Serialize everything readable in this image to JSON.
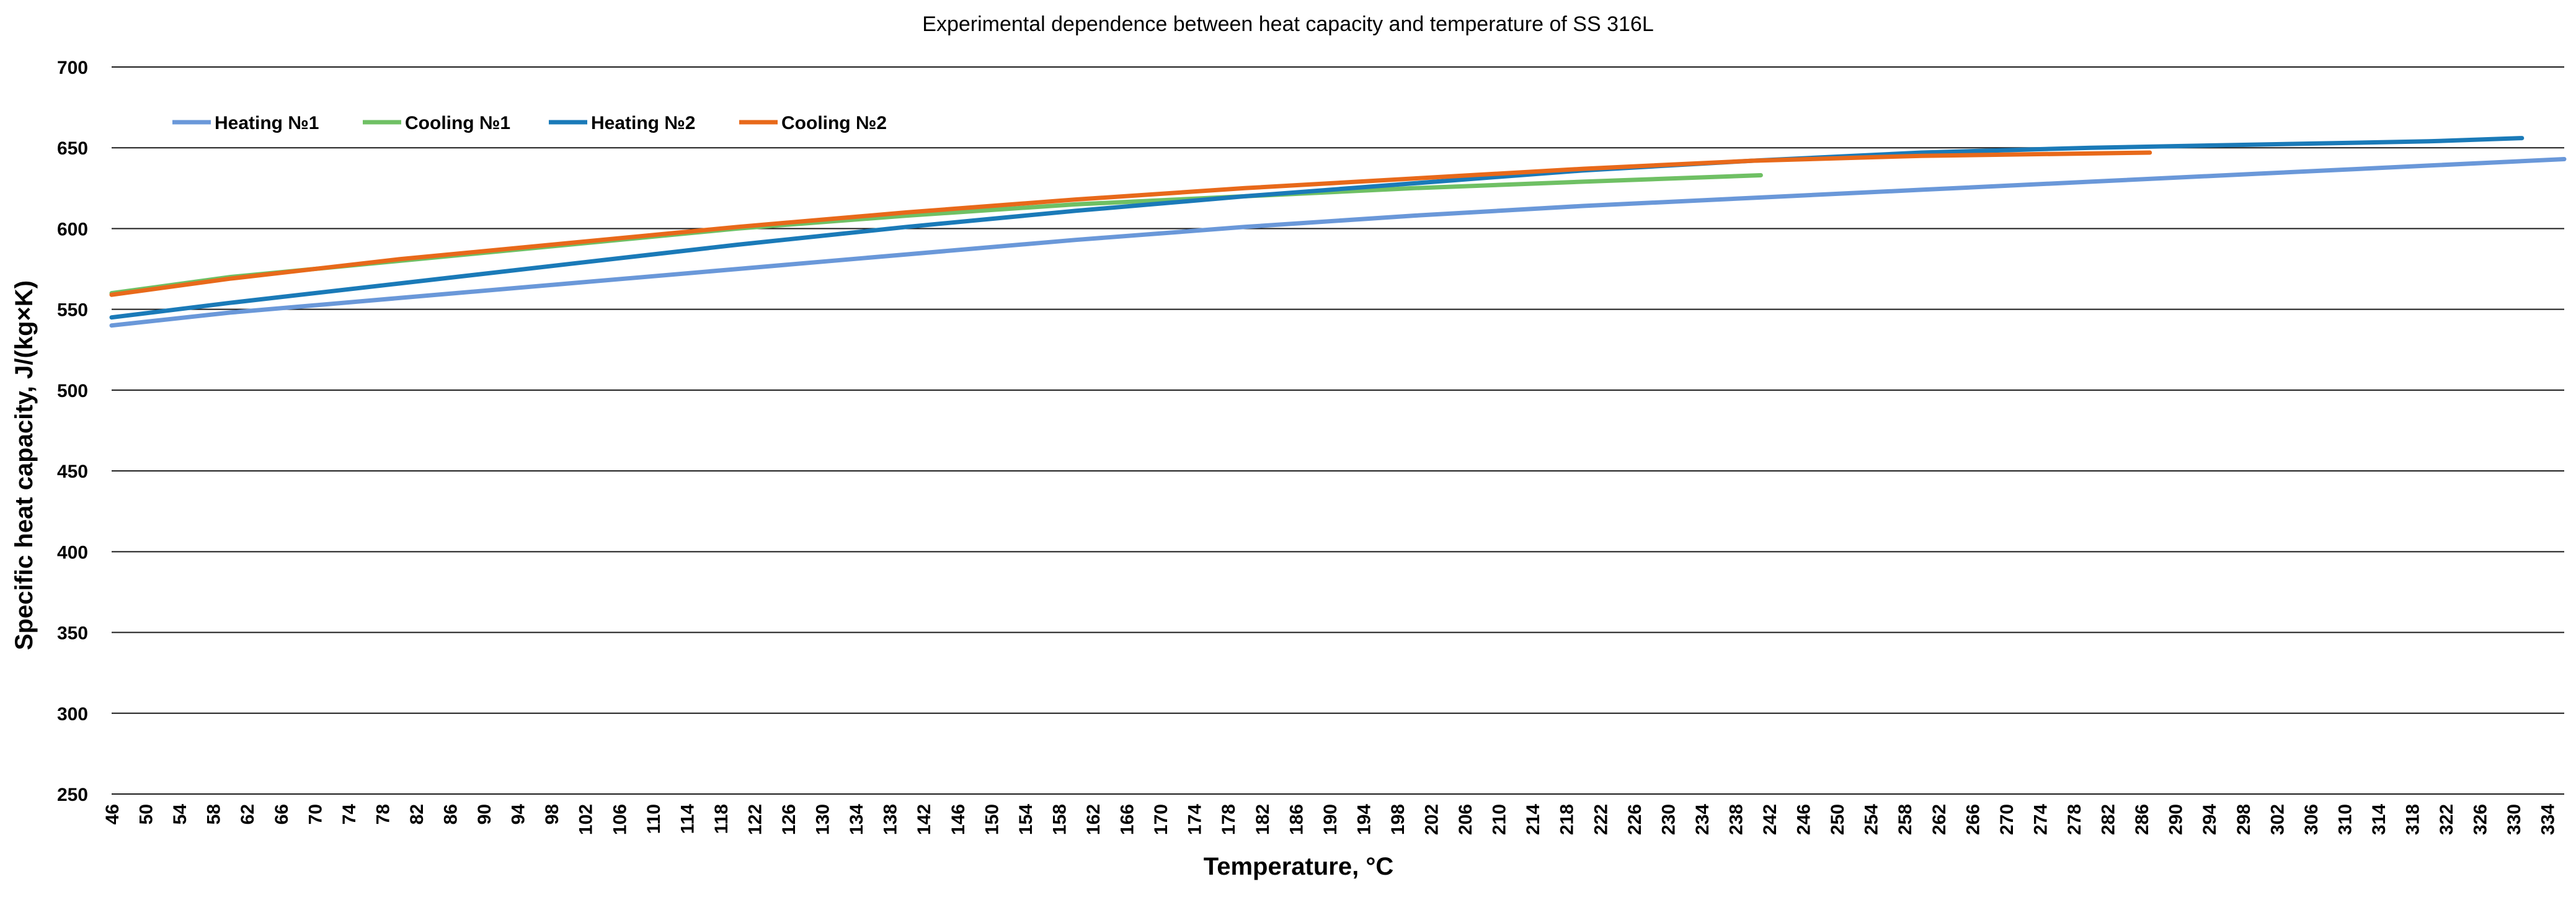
{
  "chart_data": {
    "type": "line",
    "title": "Experimental dependence between heat capacity and temperature of SS 316L",
    "xlabel": "Temperature, °C",
    "ylabel": "Specific heat capacity, J/(kg×K)",
    "xlim": [
      46,
      336
    ],
    "ylim": [
      250,
      700
    ],
    "y_ticks": [
      250,
      300,
      350,
      400,
      450,
      500,
      550,
      600,
      650,
      700
    ],
    "x_ticks": [
      46,
      50,
      54,
      58,
      62,
      66,
      70,
      74,
      78,
      82,
      86,
      90,
      94,
      98,
      102,
      106,
      110,
      114,
      118,
      122,
      126,
      130,
      134,
      138,
      142,
      146,
      150,
      154,
      158,
      162,
      166,
      170,
      174,
      178,
      182,
      186,
      190,
      194,
      198,
      202,
      206,
      210,
      214,
      218,
      222,
      226,
      230,
      234,
      238,
      242,
      246,
      250,
      254,
      258,
      262,
      266,
      270,
      274,
      278,
      282,
      286,
      290,
      294,
      298,
      302,
      306,
      310,
      314,
      318,
      322,
      326,
      330,
      334
    ],
    "grid": true,
    "legend": "top-left",
    "series": [
      {
        "name": "Heating №1",
        "color": "#6a98d9",
        "x": [
          46,
          60,
          80,
          100,
          120,
          140,
          160,
          180,
          200,
          220,
          240,
          260,
          280,
          300,
          320,
          336
        ],
        "values": [
          540,
          548,
          557,
          566,
          575,
          584,
          593,
          601,
          608,
          614,
          619,
          624,
          629,
          634,
          639,
          643
        ]
      },
      {
        "name": "Cooling №1",
        "color": "#6fc064",
        "x": [
          46,
          60,
          80,
          100,
          120,
          140,
          160,
          180,
          200,
          220,
          241
        ],
        "values": [
          560,
          570,
          580,
          590,
          600,
          608,
          615,
          620,
          625,
          629,
          633
        ]
      },
      {
        "name": "Heating №2",
        "color": "#1a7ab8",
        "x": [
          46,
          60,
          80,
          100,
          120,
          140,
          160,
          180,
          200,
          220,
          240,
          260,
          280,
          300,
          320,
          331
        ],
        "values": [
          545,
          554,
          566,
          578,
          590,
          601,
          611,
          620,
          628,
          636,
          642,
          647,
          650,
          652,
          654,
          656
        ]
      },
      {
        "name": "Cooling №2",
        "color": "#e8691a",
        "x": [
          46,
          60,
          80,
          100,
          120,
          140,
          160,
          180,
          200,
          220,
          240,
          260,
          287
        ],
        "values": [
          559,
          569,
          581,
          591,
          601,
          610,
          618,
          625,
          631,
          637,
          642,
          645,
          647
        ]
      }
    ]
  }
}
